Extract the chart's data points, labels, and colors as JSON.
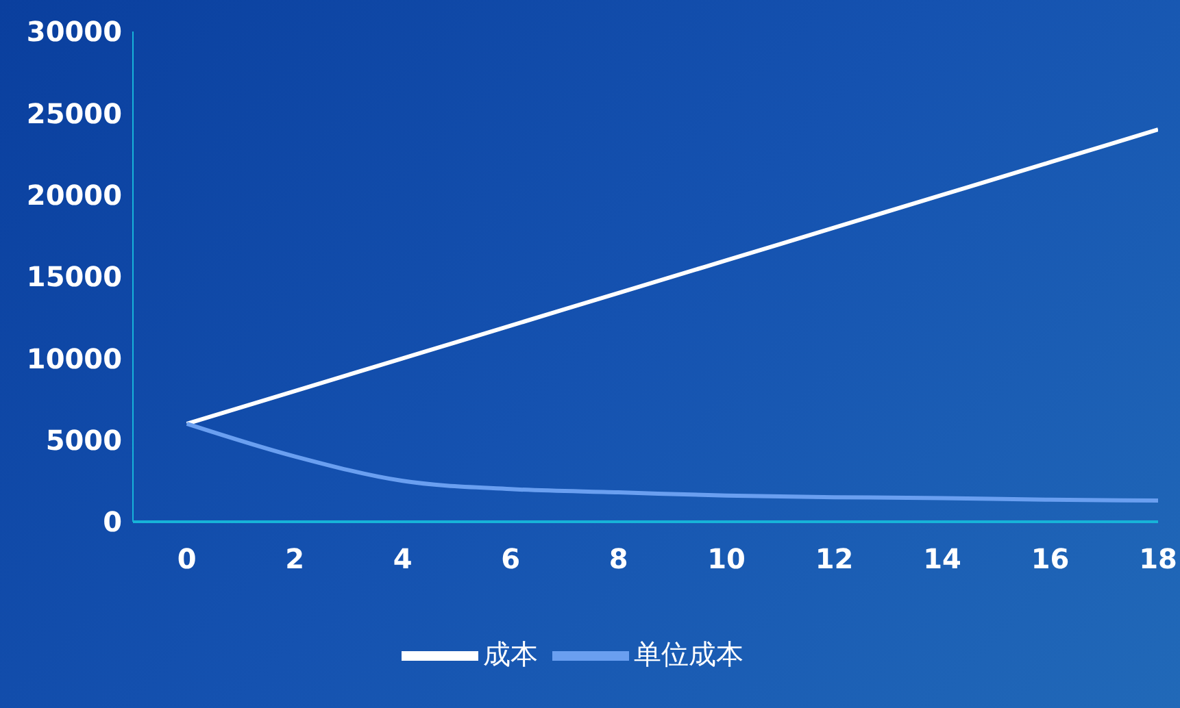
{
  "chart_data": {
    "type": "line",
    "x": [
      0,
      2,
      4,
      6,
      8,
      10,
      12,
      14,
      16,
      18
    ],
    "series": [
      {
        "name": "成本",
        "color": "#ffffff",
        "values": [
          6000,
          8000,
          10000,
          12000,
          14000,
          16000,
          18000,
          20000,
          22000,
          24000
        ]
      },
      {
        "name": "单位成本",
        "color": "#6a9ff0",
        "values": [
          6000,
          4000,
          2500,
          2000,
          1800,
          1600,
          1500,
          1450,
          1350,
          1300
        ]
      }
    ],
    "xlim": [
      -1,
      18
    ],
    "xticks": [
      0,
      2,
      4,
      6,
      8,
      10,
      12,
      14,
      16,
      18
    ],
    "ylim": [
      0,
      30000
    ],
    "yticks": [
      0,
      5000,
      10000,
      15000,
      20000,
      25000,
      30000
    ],
    "grid": false,
    "legend": "bottom",
    "marker": "none",
    "line_style": "solid"
  }
}
